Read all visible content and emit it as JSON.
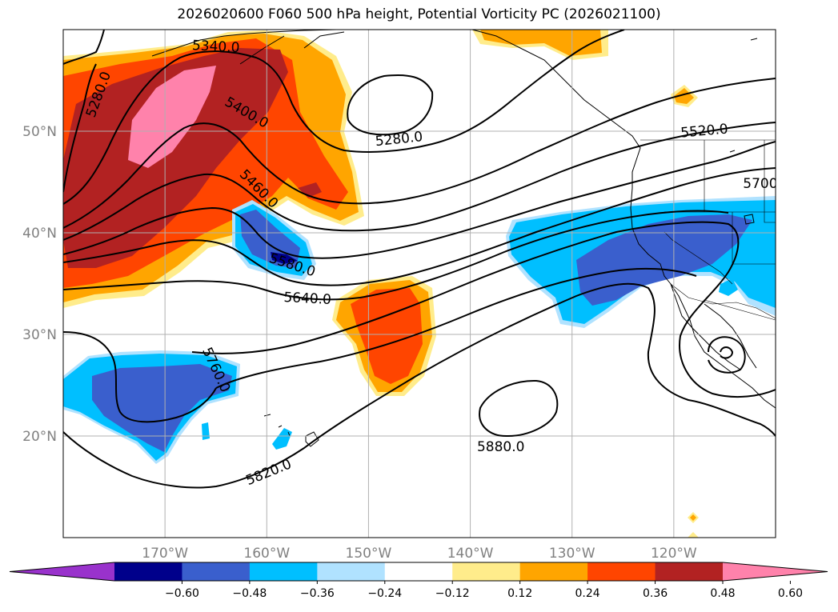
{
  "title": "2026020600 F060 500 hPa height, Potential Vorticity PC (2026021100)",
  "map": {
    "lon_range": [
      -180,
      -110
    ],
    "lat_range": [
      10,
      60
    ],
    "lon_ticks": [
      {
        "value": -170,
        "label": "170°W"
      },
      {
        "value": -160,
        "label": "160°W"
      },
      {
        "value": -150,
        "label": "150°W"
      },
      {
        "value": -140,
        "label": "140°W"
      },
      {
        "value": -130,
        "label": "130°W"
      },
      {
        "value": -120,
        "label": "120°W"
      }
    ],
    "lat_ticks": [
      {
        "value": 20,
        "label": "20°N"
      },
      {
        "value": 30,
        "label": "30°N"
      },
      {
        "value": 40,
        "label": "40°N"
      },
      {
        "value": 50,
        "label": "50°N"
      }
    ],
    "gridlines": true,
    "contour_labels": [
      {
        "text": "5340.0",
        "lon": -165,
        "lat": 58.3,
        "angle": 3
      },
      {
        "text": "5280.0",
        "lon": -176.5,
        "lat": 53.6,
        "angle": -70
      },
      {
        "text": "5400.0",
        "lon": -162,
        "lat": 51.8,
        "angle": 30
      },
      {
        "text": "5460.0",
        "lon": -160.8,
        "lat": 44.3,
        "angle": 45
      },
      {
        "text": "5280.0",
        "lon": -147,
        "lat": 49.2,
        "angle": -6
      },
      {
        "text": "5520.0",
        "lon": -117,
        "lat": 50.0,
        "angle": -5
      },
      {
        "text": "5700",
        "lon": -111.5,
        "lat": 44.8,
        "angle": 0
      },
      {
        "text": "5580.0",
        "lon": -157.5,
        "lat": 36.8,
        "angle": 18
      },
      {
        "text": "5640.0",
        "lon": -156,
        "lat": 33.5,
        "angle": 3
      },
      {
        "text": "5760.0",
        "lon": -165,
        "lat": 26.5,
        "angle": 65
      },
      {
        "text": "5880.0",
        "lon": -137,
        "lat": 18.9,
        "angle": 0
      },
      {
        "text": "5820.0",
        "lon": -159.8,
        "lat": 16.4,
        "angle": -22
      }
    ],
    "contour_color": "#000000"
  },
  "colorbar": {
    "levels": [
      "-0.60",
      "-0.48",
      "-0.36",
      "-0.24",
      "-0.12",
      "0.12",
      "0.24",
      "0.36",
      "0.48",
      "0.60"
    ],
    "colors": [
      "#9932cc",
      "#00008b",
      "#3a5fcd",
      "#00bfff",
      "#b0e2ff",
      "#ffffff",
      "#ffec8b",
      "#ffa500",
      "#ff4500",
      "#b22222",
      "#ff82ab"
    ]
  },
  "pv_colors": {
    "neg_weak": "#b0e2ff",
    "neg_mid": "#00bfff",
    "neg_strong": "#3a5fcd",
    "neg_very_strong": "#00008b",
    "pos_weak": "#ffec8b",
    "pos_mid": "#ffa500",
    "pos_strong": "#ff4500",
    "pos_very_strong": "#b22222",
    "pos_extreme": "#ff82ab"
  }
}
